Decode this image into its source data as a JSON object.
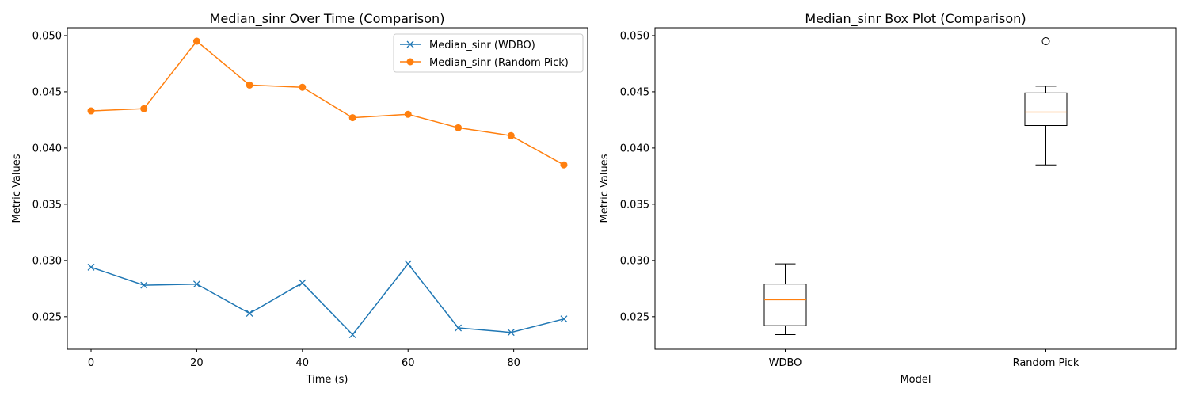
{
  "chart_data": [
    {
      "type": "line",
      "title": "Median_sinr Over Time (Comparison)",
      "xlabel": "Time (s)",
      "ylabel": "Metric Values",
      "xlim": [
        -4.5,
        94
      ],
      "ylim": [
        0.0221,
        0.0507
      ],
      "xticks": [
        0,
        20,
        40,
        60,
        80
      ],
      "xtick_labels": [
        "0",
        "20",
        "40",
        "60",
        "80"
      ],
      "yticks": [
        0.025,
        0.03,
        0.035,
        0.04,
        0.045,
        0.05
      ],
      "ytick_labels": [
        "0.025",
        "0.030",
        "0.035",
        "0.040",
        "0.045",
        "0.050"
      ],
      "grid": false,
      "legend_position": "top-right",
      "x": [
        0,
        10,
        20,
        30,
        40,
        49.5,
        60,
        69.5,
        79.5,
        89.5
      ],
      "series": [
        {
          "name": "Median_sinr (WDBO)",
          "color": "#1f77b4",
          "marker": "x",
          "values": [
            0.0294,
            0.0278,
            0.0279,
            0.0253,
            0.028,
            0.0234,
            0.0297,
            0.024,
            0.0236,
            0.0248
          ]
        },
        {
          "name": "Median_sinr (Random Pick)",
          "color": "#ff7f0e",
          "marker": "circle",
          "values": [
            0.0433,
            0.0435,
            0.0495,
            0.0456,
            0.0454,
            0.0427,
            0.043,
            0.0418,
            0.0411,
            0.0385
          ]
        }
      ]
    },
    {
      "type": "box",
      "title": "Median_sinr Box Plot (Comparison)",
      "xlabel": "Model",
      "ylabel": "Metric Values",
      "ylim": [
        0.0221,
        0.0507
      ],
      "yticks": [
        0.025,
        0.03,
        0.035,
        0.04,
        0.045,
        0.05
      ],
      "ytick_labels": [
        "0.025",
        "0.030",
        "0.035",
        "0.040",
        "0.045",
        "0.050"
      ],
      "grid": false,
      "categories": [
        "WDBO",
        "Random Pick"
      ],
      "median_color": "#ff7f0e",
      "boxes": [
        {
          "label": "WDBO",
          "whisker_low": 0.0234,
          "q1": 0.0242,
          "median": 0.0265,
          "q3": 0.0279,
          "whisker_high": 0.0297,
          "outliers": []
        },
        {
          "label": "Random Pick",
          "whisker_low": 0.0385,
          "q1": 0.042,
          "median": 0.0432,
          "q3": 0.0449,
          "whisker_high": 0.0455,
          "outliers": [
            0.0495
          ]
        }
      ]
    }
  ]
}
